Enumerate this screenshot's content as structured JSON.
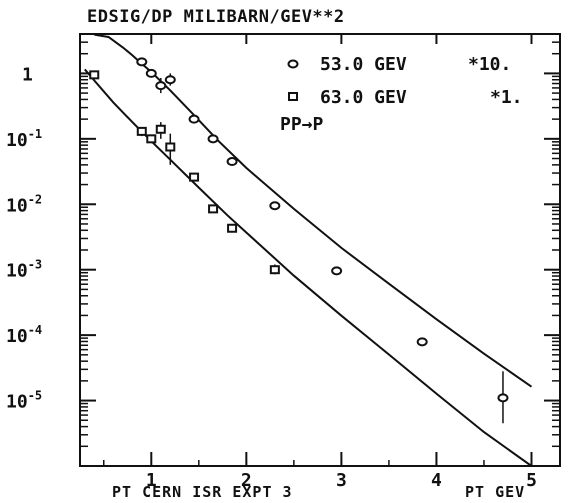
{
  "chart_data": {
    "type": "scatter",
    "title": "EDSIG/DP MILIBARN/GEV**2",
    "xlabel": "PT CERN ISR EXPT 3",
    "xlabel_right": "PT GEV",
    "ylabel": "",
    "x_scale": "linear",
    "y_scale": "log",
    "xlim": [
      0.25,
      5.3
    ],
    "ylim": [
      1e-06,
      4.0
    ],
    "x_ticks": [
      "1",
      "2",
      "3",
      "4",
      "5"
    ],
    "y_ticks": [
      {
        "label": "1",
        "value": 1
      },
      {
        "label": "10",
        "exp": "-1",
        "value": 0.1
      },
      {
        "label": "10",
        "exp": "-2",
        "value": 0.01
      },
      {
        "label": "10",
        "exp": "-3",
        "value": 0.001
      },
      {
        "label": "10",
        "exp": "-4",
        "value": 0.0001
      },
      {
        "label": "10",
        "exp": "-5",
        "value": 1e-05
      }
    ],
    "legend": {
      "position": "top-right",
      "entries": [
        {
          "marker": "circle",
          "text": "53.0 GEV",
          "factor": "*10."
        },
        {
          "marker": "square",
          "text": "63.0 GEV",
          "factor": "*1."
        }
      ],
      "reaction": "PP→P"
    },
    "series": [
      {
        "name": "53.0 GEV *10.",
        "marker": "circle",
        "x": [
          0.9,
          1.0,
          1.1,
          1.2,
          1.45,
          1.65,
          1.85,
          2.3,
          2.95,
          3.85,
          4.7
        ],
        "y": [
          1.5,
          1.0,
          0.65,
          0.8,
          0.2,
          0.1,
          0.045,
          0.0095,
          0.00096,
          7.9e-05,
          1.1e-05
        ],
        "y_err_low": [
          1.35,
          0.9,
          0.5,
          0.65,
          0.185,
          0.092,
          0.04,
          0.0088,
          0.0009,
          7e-05,
          4.5e-06
        ],
        "y_err_high": [
          1.65,
          1.1,
          0.85,
          1.0,
          0.215,
          0.108,
          0.05,
          0.0102,
          0.00102,
          9e-05,
          2.8e-05
        ]
      },
      {
        "name": "63.0 GEV *1.",
        "marker": "square",
        "x": [
          0.4,
          0.9,
          1.0,
          1.1,
          1.2,
          1.45,
          1.65,
          1.85,
          2.3
        ],
        "y": [
          0.95,
          0.13,
          0.1,
          0.14,
          0.075,
          0.026,
          0.0085,
          0.0043,
          0.001
        ],
        "y_err_low": [
          0.88,
          0.11,
          0.09,
          0.1,
          0.04,
          0.024,
          0.0075,
          0.0038,
          0.00085
        ],
        "y_err_high": [
          1.02,
          0.15,
          0.11,
          0.18,
          0.12,
          0.028,
          0.0095,
          0.0048,
          0.0012
        ]
      }
    ],
    "fit_curves": [
      {
        "name": "53.0 GEV fit",
        "x": [
          0.4,
          0.55,
          0.7,
          0.8,
          0.9,
          1.0,
          1.2,
          1.45,
          1.7,
          2.0,
          2.5,
          3.0,
          3.5,
          4.0,
          4.5,
          5.0
        ],
        "y": [
          3.9,
          3.6,
          2.5,
          1.9,
          1.4,
          1.05,
          0.55,
          0.23,
          0.095,
          0.036,
          0.0085,
          0.00215,
          0.00061,
          0.000175,
          5.2e-05,
          1.63e-05
        ]
      },
      {
        "name": "63.0 GEV fit",
        "x": [
          0.3,
          0.4,
          0.6,
          0.8,
          1.0,
          1.2,
          1.5,
          1.8,
          2.0,
          2.5,
          3.0,
          3.5,
          4.0,
          4.5,
          5.0
        ],
        "y": [
          1.15,
          0.78,
          0.36,
          0.18,
          0.092,
          0.048,
          0.018,
          0.0068,
          0.0037,
          0.00081,
          0.000198,
          5.05e-05,
          1.28e-05,
          3.3e-06,
          8.4e-07
        ]
      }
    ]
  }
}
